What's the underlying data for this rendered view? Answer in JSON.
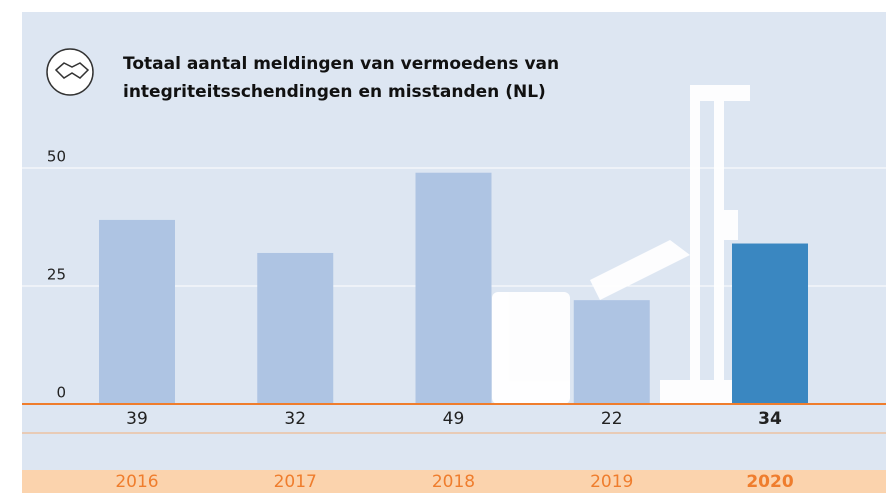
{
  "chart_data": {
    "type": "bar",
    "title": [
      "Totaal aantal meldingen van vermoedens van",
      "integriteitsschendingen en misstanden (NL)"
    ],
    "categories": [
      "2016",
      "2017",
      "2018",
      "2019",
      "2020"
    ],
    "values": [
      39,
      32,
      49,
      22,
      34
    ],
    "colors": [
      "#aec4e3",
      "#aec4e3",
      "#aec4e3",
      "#aec4e3",
      "#3a87c1"
    ],
    "emphasis": [
      false,
      false,
      false,
      false,
      true
    ],
    "ylim": [
      0,
      50
    ],
    "yticks": [
      0,
      25,
      50
    ],
    "grid": true
  }
}
